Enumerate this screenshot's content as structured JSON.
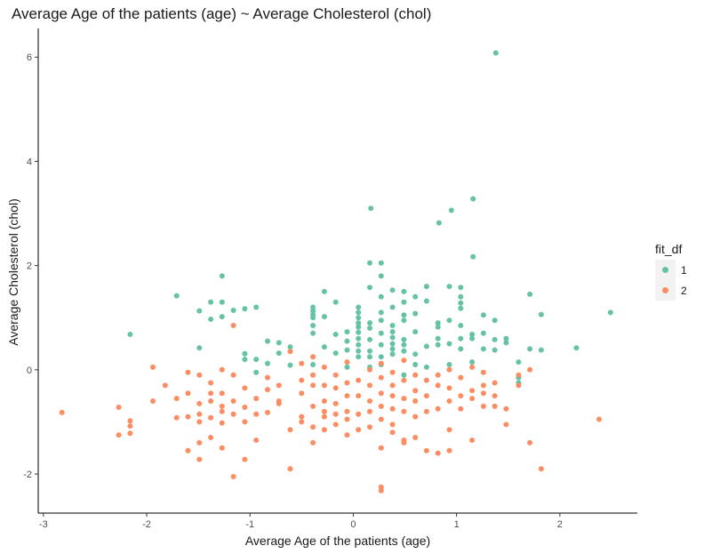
{
  "chart_data": {
    "type": "scatter",
    "title": "Average Age of the patients (age) ~ Average Cholesterol (chol)",
    "xlabel": "Average Age of the patients (age)",
    "ylabel": "Average Cholesterol (chol)",
    "xlim": [
      -3.05,
      2.75
    ],
    "ylim": [
      -2.75,
      6.55
    ],
    "xticks": [
      -3,
      -2,
      -1,
      0,
      1,
      2
    ],
    "yticks": [
      -2,
      0,
      2,
      4,
      6
    ],
    "grid": false,
    "legend": {
      "title": "fit_df",
      "placement": "right",
      "entries": [
        "1",
        "2"
      ]
    },
    "colors": {
      "1": "#66c2a5",
      "2": "#fc8d62"
    },
    "series": [
      {
        "name": "1",
        "points": [
          [
            1.38,
            6.08
          ],
          [
            1.16,
            3.28
          ],
          [
            0.17,
            3.1
          ],
          [
            0.95,
            3.06
          ],
          [
            0.83,
            2.82
          ],
          [
            1.16,
            2.17
          ],
          [
            -1.27,
            1.8
          ],
          [
            -1.71,
            1.42
          ],
          [
            -1.38,
            1.3
          ],
          [
            -1.27,
            1.3
          ],
          [
            -0.94,
            1.2
          ],
          [
            -1.05,
            1.17
          ],
          [
            -1.49,
            1.13
          ],
          [
            -1.38,
            0.97
          ],
          [
            -1.27,
            1.02
          ],
          [
            -1.16,
            1.14
          ],
          [
            -2.16,
            0.68
          ],
          [
            -1.49,
            0.42
          ],
          [
            -1.05,
            0.31
          ],
          [
            -1.05,
            0.2
          ],
          [
            -0.83,
            0.55
          ],
          [
            -0.72,
            0.52
          ],
          [
            -0.61,
            0.44
          ],
          [
            -0.72,
            0.32
          ],
          [
            -0.94,
            0.2
          ],
          [
            -0.83,
            0.12
          ],
          [
            -0.61,
            0.09
          ],
          [
            -0.39,
            1.2
          ],
          [
            -0.39,
            1.13
          ],
          [
            -0.39,
            1.06
          ],
          [
            -0.39,
            1.0
          ],
          [
            -0.28,
            1.5
          ],
          [
            -0.28,
            1.02
          ],
          [
            -0.17,
            1.3
          ],
          [
            -0.39,
            0.85
          ],
          [
            -0.39,
            0.7
          ],
          [
            -0.17,
            0.68
          ],
          [
            -0.06,
            0.73
          ],
          [
            -0.28,
            0.44
          ],
          [
            -0.17,
            0.32
          ],
          [
            -0.06,
            0.55
          ],
          [
            -0.06,
            0.38
          ],
          [
            0.05,
            1.2
          ],
          [
            0.05,
            1.1
          ],
          [
            0.05,
            1.0
          ],
          [
            0.05,
            0.9
          ],
          [
            0.05,
            0.82
          ],
          [
            0.05,
            0.72
          ],
          [
            0.05,
            0.6
          ],
          [
            0.05,
            0.48
          ],
          [
            0.05,
            0.36
          ],
          [
            0.05,
            0.25
          ],
          [
            0.16,
            2.05
          ],
          [
            0.16,
            1.58
          ],
          [
            0.16,
            0.9
          ],
          [
            0.16,
            0.8
          ],
          [
            0.16,
            0.58
          ],
          [
            0.16,
            0.36
          ],
          [
            0.16,
            0.25
          ],
          [
            0.27,
            2.05
          ],
          [
            0.27,
            1.8
          ],
          [
            0.27,
            1.4
          ],
          [
            0.27,
            1.1
          ],
          [
            0.27,
            0.95
          ],
          [
            0.27,
            0.7
          ],
          [
            0.27,
            0.48
          ],
          [
            0.27,
            0.25
          ],
          [
            0.38,
            1.53
          ],
          [
            0.38,
            1.2
          ],
          [
            0.38,
            0.85
          ],
          [
            0.38,
            0.73
          ],
          [
            0.38,
            0.62
          ],
          [
            0.38,
            0.5
          ],
          [
            0.38,
            0.4
          ],
          [
            0.38,
            0.3
          ],
          [
            0.49,
            1.5
          ],
          [
            0.49,
            1.3
          ],
          [
            0.49,
            1.05
          ],
          [
            0.49,
            0.95
          ],
          [
            0.49,
            0.58
          ],
          [
            0.49,
            0.48
          ],
          [
            0.49,
            0.36
          ],
          [
            0.6,
            1.4
          ],
          [
            0.6,
            1.08
          ],
          [
            0.6,
            0.73
          ],
          [
            0.6,
            0.3
          ],
          [
            0.71,
            1.6
          ],
          [
            0.71,
            1.32
          ],
          [
            0.71,
            0.45
          ],
          [
            0.82,
            0.9
          ],
          [
            0.82,
            0.82
          ],
          [
            0.82,
            0.6
          ],
          [
            0.82,
            0.48
          ],
          [
            0.93,
            1.6
          ],
          [
            0.93,
            0.95
          ],
          [
            0.93,
            0.5
          ],
          [
            1.04,
            1.58
          ],
          [
            1.04,
            1.4
          ],
          [
            1.04,
            1.28
          ],
          [
            1.04,
            1.18
          ],
          [
            1.04,
            0.85
          ],
          [
            1.04,
            0.6
          ],
          [
            1.04,
            0.4
          ],
          [
            1.15,
            0.68
          ],
          [
            1.15,
            0.6
          ],
          [
            1.15,
            0.15
          ],
          [
            1.26,
            1.05
          ],
          [
            1.26,
            0.7
          ],
          [
            1.26,
            0.4
          ],
          [
            1.37,
            0.95
          ],
          [
            1.37,
            0.58
          ],
          [
            1.37,
            0.38
          ],
          [
            1.48,
            0.6
          ],
          [
            1.48,
            0.52
          ],
          [
            1.71,
            1.45
          ],
          [
            1.71,
            0.4
          ],
          [
            1.82,
            1.06
          ],
          [
            1.82,
            0.38
          ],
          [
            2.16,
            0.42
          ],
          [
            2.49,
            1.1
          ],
          [
            1.6,
            -0.15
          ],
          [
            1.6,
            -0.25
          ],
          [
            1.6,
            0.15
          ],
          [
            0.6,
            0.1
          ],
          [
            0.49,
            -0.1
          ],
          [
            0.71,
            0.05
          ],
          [
            0.93,
            0.1
          ],
          [
            -0.06,
            0.05
          ],
          [
            0.27,
            0.1
          ],
          [
            -0.39,
            0.1
          ],
          [
            -0.94,
            -0.05
          ],
          [
            0.16,
            0.05
          ]
        ]
      },
      {
        "name": "2",
        "points": [
          [
            -2.82,
            -0.82
          ],
          [
            -2.27,
            -0.72
          ],
          [
            -2.27,
            -1.25
          ],
          [
            -2.16,
            -0.98
          ],
          [
            -2.16,
            -1.08
          ],
          [
            -2.16,
            -1.22
          ],
          [
            -1.94,
            0.05
          ],
          [
            -1.94,
            -0.6
          ],
          [
            -1.82,
            -0.3
          ],
          [
            -1.71,
            -0.55
          ],
          [
            -1.71,
            -0.92
          ],
          [
            -1.6,
            -0.05
          ],
          [
            -1.6,
            -0.45
          ],
          [
            -1.6,
            -0.9
          ],
          [
            -1.6,
            -1.55
          ],
          [
            -1.49,
            -0.1
          ],
          [
            -1.49,
            -0.65
          ],
          [
            -1.49,
            -0.85
          ],
          [
            -1.49,
            -1.0
          ],
          [
            -1.49,
            -1.4
          ],
          [
            -1.49,
            -1.72
          ],
          [
            -1.38,
            -0.25
          ],
          [
            -1.38,
            -0.45
          ],
          [
            -1.38,
            -0.6
          ],
          [
            -1.38,
            -0.92
          ],
          [
            -1.38,
            -1.3
          ],
          [
            -1.27,
            0.0
          ],
          [
            -1.27,
            -0.45
          ],
          [
            -1.27,
            -0.7
          ],
          [
            -1.27,
            -0.8
          ],
          [
            -1.27,
            -1.02
          ],
          [
            -1.27,
            -1.5
          ],
          [
            -1.16,
            -0.1
          ],
          [
            -1.16,
            -0.6
          ],
          [
            -1.16,
            -0.85
          ],
          [
            -1.16,
            -2.05
          ],
          [
            -1.16,
            0.85
          ],
          [
            -1.05,
            -0.35
          ],
          [
            -1.05,
            -0.72
          ],
          [
            -1.05,
            -1.0
          ],
          [
            -1.05,
            -1.72
          ],
          [
            -0.94,
            -0.55
          ],
          [
            -0.94,
            -0.85
          ],
          [
            -0.94,
            -1.35
          ],
          [
            -0.83,
            -0.15
          ],
          [
            -0.83,
            -0.38
          ],
          [
            -0.83,
            -0.82
          ],
          [
            -0.72,
            -0.3
          ],
          [
            -0.72,
            -0.6
          ],
          [
            -0.72,
            -0.65
          ],
          [
            -0.61,
            0.35
          ],
          [
            -0.61,
            -1.15
          ],
          [
            -0.61,
            -1.9
          ],
          [
            -0.5,
            0.12
          ],
          [
            -0.5,
            -0.2
          ],
          [
            -0.5,
            -0.45
          ],
          [
            -0.5,
            -0.9
          ],
          [
            -0.5,
            -1.0
          ],
          [
            -0.39,
            0.25
          ],
          [
            -0.39,
            -0.1
          ],
          [
            -0.39,
            -0.3
          ],
          [
            -0.39,
            -0.7
          ],
          [
            -0.39,
            -1.1
          ],
          [
            -0.39,
            -1.4
          ],
          [
            -0.28,
            0.05
          ],
          [
            -0.28,
            -0.3
          ],
          [
            -0.28,
            -0.6
          ],
          [
            -0.28,
            -0.8
          ],
          [
            -0.28,
            -0.9
          ],
          [
            -0.28,
            -1.15
          ],
          [
            -0.17,
            -0.1
          ],
          [
            -0.17,
            -0.35
          ],
          [
            -0.17,
            -0.65
          ],
          [
            -0.17,
            -0.85
          ],
          [
            -0.17,
            -1.05
          ],
          [
            -0.06,
            -0.25
          ],
          [
            -0.06,
            -0.5
          ],
          [
            -0.06,
            -0.8
          ],
          [
            -0.06,
            -0.95
          ],
          [
            -0.06,
            -1.25
          ],
          [
            0.05,
            -0.2
          ],
          [
            0.05,
            -0.5
          ],
          [
            0.05,
            -0.85
          ],
          [
            0.05,
            -1.15
          ],
          [
            0.16,
            0.0
          ],
          [
            0.16,
            -0.3
          ],
          [
            0.16,
            -0.6
          ],
          [
            0.16,
            -0.8
          ],
          [
            0.16,
            -1.1
          ],
          [
            0.27,
            -0.15
          ],
          [
            0.27,
            -0.45
          ],
          [
            0.27,
            -0.7
          ],
          [
            0.27,
            -0.95
          ],
          [
            0.27,
            -1.5
          ],
          [
            0.27,
            -2.25
          ],
          [
            0.27,
            -2.32
          ],
          [
            0.38,
            -0.05
          ],
          [
            0.38,
            -0.3
          ],
          [
            0.38,
            -0.5
          ],
          [
            0.38,
            -0.75
          ],
          [
            0.38,
            -1.05
          ],
          [
            0.38,
            -1.2
          ],
          [
            0.49,
            -0.2
          ],
          [
            0.49,
            -0.55
          ],
          [
            0.49,
            -0.8
          ],
          [
            0.49,
            -1.35
          ],
          [
            0.49,
            -1.4
          ],
          [
            0.6,
            -0.1
          ],
          [
            0.6,
            -0.4
          ],
          [
            0.6,
            -0.6
          ],
          [
            0.6,
            -0.9
          ],
          [
            0.6,
            -1.3
          ],
          [
            0.71,
            -0.2
          ],
          [
            0.71,
            -0.5
          ],
          [
            0.71,
            -0.8
          ],
          [
            0.71,
            -1.55
          ],
          [
            0.82,
            -0.1
          ],
          [
            0.82,
            -0.3
          ],
          [
            0.82,
            -0.75
          ],
          [
            0.82,
            -1.6
          ],
          [
            0.93,
            -0.35
          ],
          [
            0.93,
            -0.6
          ],
          [
            0.93,
            -1.15
          ],
          [
            0.93,
            -1.55
          ],
          [
            1.04,
            -0.15
          ],
          [
            1.04,
            -0.5
          ],
          [
            1.04,
            -0.75
          ],
          [
            1.15,
            0.05
          ],
          [
            1.15,
            -0.4
          ],
          [
            1.15,
            -0.55
          ],
          [
            1.15,
            -1.35
          ],
          [
            1.26,
            -0.05
          ],
          [
            1.26,
            -0.3
          ],
          [
            1.26,
            -0.45
          ],
          [
            1.26,
            -0.7
          ],
          [
            1.37,
            -0.25
          ],
          [
            1.37,
            -0.5
          ],
          [
            1.37,
            -0.7
          ],
          [
            1.48,
            -0.75
          ],
          [
            1.48,
            -1.05
          ],
          [
            1.6,
            -0.1
          ],
          [
            1.6,
            -0.3
          ],
          [
            1.71,
            -1.4
          ],
          [
            1.71,
            0.0
          ],
          [
            1.82,
            -1.9
          ],
          [
            2.38,
            -0.95
          ],
          [
            -0.06,
            0.15
          ],
          [
            0.27,
            0.12
          ],
          [
            0.49,
            0.18
          ],
          [
            0.93,
            0.0
          ]
        ]
      }
    ]
  }
}
